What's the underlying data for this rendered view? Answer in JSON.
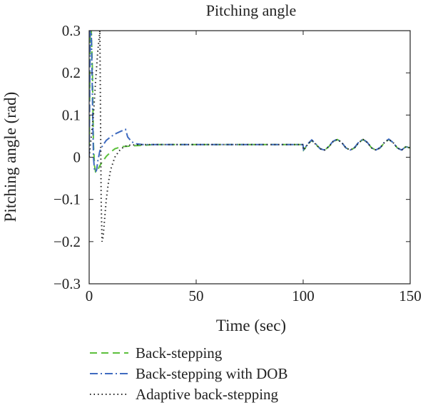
{
  "chart_data": {
    "type": "line",
    "title": "Pitching angle",
    "xlabel": "Time (sec)",
    "ylabel": "Pitching angle (rad)",
    "xlim": [
      0,
      150
    ],
    "ylim": [
      -0.3,
      0.3
    ],
    "xticks": [
      0,
      50,
      100,
      150
    ],
    "yticks": [
      0.3,
      0.2,
      0.1,
      0,
      -0.1,
      -0.2,
      -0.3
    ],
    "xtick_labels": [
      "0",
      "50",
      "100",
      "150"
    ],
    "ytick_labels": [
      "0.3",
      "0.2",
      "0.1",
      "0",
      "−0.1",
      "−0.2",
      "−0.3"
    ],
    "grid": false,
    "legend_position": "bottom-left, below plot",
    "series": [
      {
        "name": "Back-stepping",
        "color": "#5cc03c",
        "dash": "dashed",
        "x": [
          0,
          0.5,
          1,
          1.5,
          2,
          2.5,
          3,
          3.5,
          4,
          5,
          6,
          8,
          10,
          12,
          15,
          18,
          20,
          25,
          30,
          40,
          50,
          60,
          70,
          80,
          90,
          99.9,
          100.2,
          101,
          102,
          104,
          106,
          108,
          110,
          112,
          114,
          116,
          118,
          120,
          122,
          124,
          126,
          128,
          130,
          132,
          134,
          136,
          138,
          140,
          142,
          144,
          146,
          148,
          150
        ],
        "values": [
          0,
          0.3,
          0.3,
          0.21,
          0.03,
          -0.02,
          -0.035,
          -0.035,
          -0.03,
          -0.02,
          -0.012,
          0.002,
          0.012,
          0.02,
          0.025,
          0.026,
          0.027,
          0.028,
          0.03,
          0.03,
          0.03,
          0.03,
          0.03,
          0.03,
          0.03,
          0.03,
          0.017,
          0.022,
          0.03,
          0.04,
          0.03,
          0.02,
          0.017,
          0.025,
          0.037,
          0.042,
          0.035,
          0.022,
          0.017,
          0.022,
          0.035,
          0.042,
          0.035,
          0.022,
          0.017,
          0.022,
          0.035,
          0.042,
          0.035,
          0.022,
          0.017,
          0.025,
          0.022
        ]
      },
      {
        "name": "Back-stepping with DOB",
        "color": "#3f6bc0",
        "dash": "dashdot",
        "x": [
          0,
          0.5,
          1,
          1.5,
          2,
          2.5,
          3,
          3.5,
          4,
          5,
          6,
          8,
          10,
          12,
          15,
          17,
          18,
          19,
          20,
          22,
          25,
          30,
          40,
          50,
          60,
          70,
          80,
          90,
          99.9,
          100.2,
          101,
          102,
          104,
          106,
          108,
          110,
          112,
          114,
          116,
          118,
          120,
          122,
          124,
          126,
          128,
          130,
          132,
          134,
          136,
          138,
          140,
          142,
          144,
          146,
          148,
          150
        ],
        "values": [
          0,
          0.3,
          0.3,
          0.15,
          0.0,
          -0.03,
          -0.035,
          -0.03,
          -0.01,
          0.015,
          0.025,
          0.04,
          0.048,
          0.055,
          0.062,
          0.066,
          0.048,
          0.042,
          0.036,
          0.032,
          0.03,
          0.03,
          0.03,
          0.03,
          0.03,
          0.03,
          0.03,
          0.03,
          0.03,
          0.018,
          0.023,
          0.031,
          0.041,
          0.031,
          0.02,
          0.017,
          0.026,
          0.038,
          0.043,
          0.035,
          0.022,
          0.017,
          0.023,
          0.036,
          0.043,
          0.035,
          0.022,
          0.017,
          0.023,
          0.036,
          0.043,
          0.035,
          0.022,
          0.017,
          0.025,
          0.022
        ]
      },
      {
        "name": "Adaptive back-stepping",
        "color": "#222222",
        "dash": "dotted",
        "x": [
          0,
          1,
          2,
          3,
          4,
          5,
          5.3,
          5.6,
          6,
          6.5,
          7,
          8,
          9,
          10,
          12,
          14,
          16,
          18,
          20,
          25,
          30,
          40,
          50,
          60,
          70,
          80,
          90,
          99.9,
          100.2,
          101,
          102,
          104,
          106,
          108,
          110,
          112,
          114,
          116,
          118,
          120,
          122,
          124,
          126,
          128,
          130,
          132,
          134,
          136,
          138,
          140,
          142,
          144,
          146,
          148,
          150
        ],
        "values": [
          0,
          0.05,
          0.1,
          0.18,
          0.25,
          0.3,
          0.1,
          -0.1,
          -0.2,
          -0.19,
          -0.16,
          -0.1,
          -0.06,
          -0.03,
          0.0,
          0.015,
          0.024,
          0.028,
          0.029,
          0.03,
          0.03,
          0.03,
          0.03,
          0.03,
          0.03,
          0.03,
          0.03,
          0.03,
          0.017,
          0.022,
          0.03,
          0.04,
          0.03,
          0.02,
          0.017,
          0.025,
          0.037,
          0.042,
          0.035,
          0.022,
          0.017,
          0.022,
          0.035,
          0.042,
          0.035,
          0.022,
          0.017,
          0.022,
          0.035,
          0.042,
          0.035,
          0.022,
          0.017,
          0.025,
          0.022
        ]
      }
    ]
  }
}
